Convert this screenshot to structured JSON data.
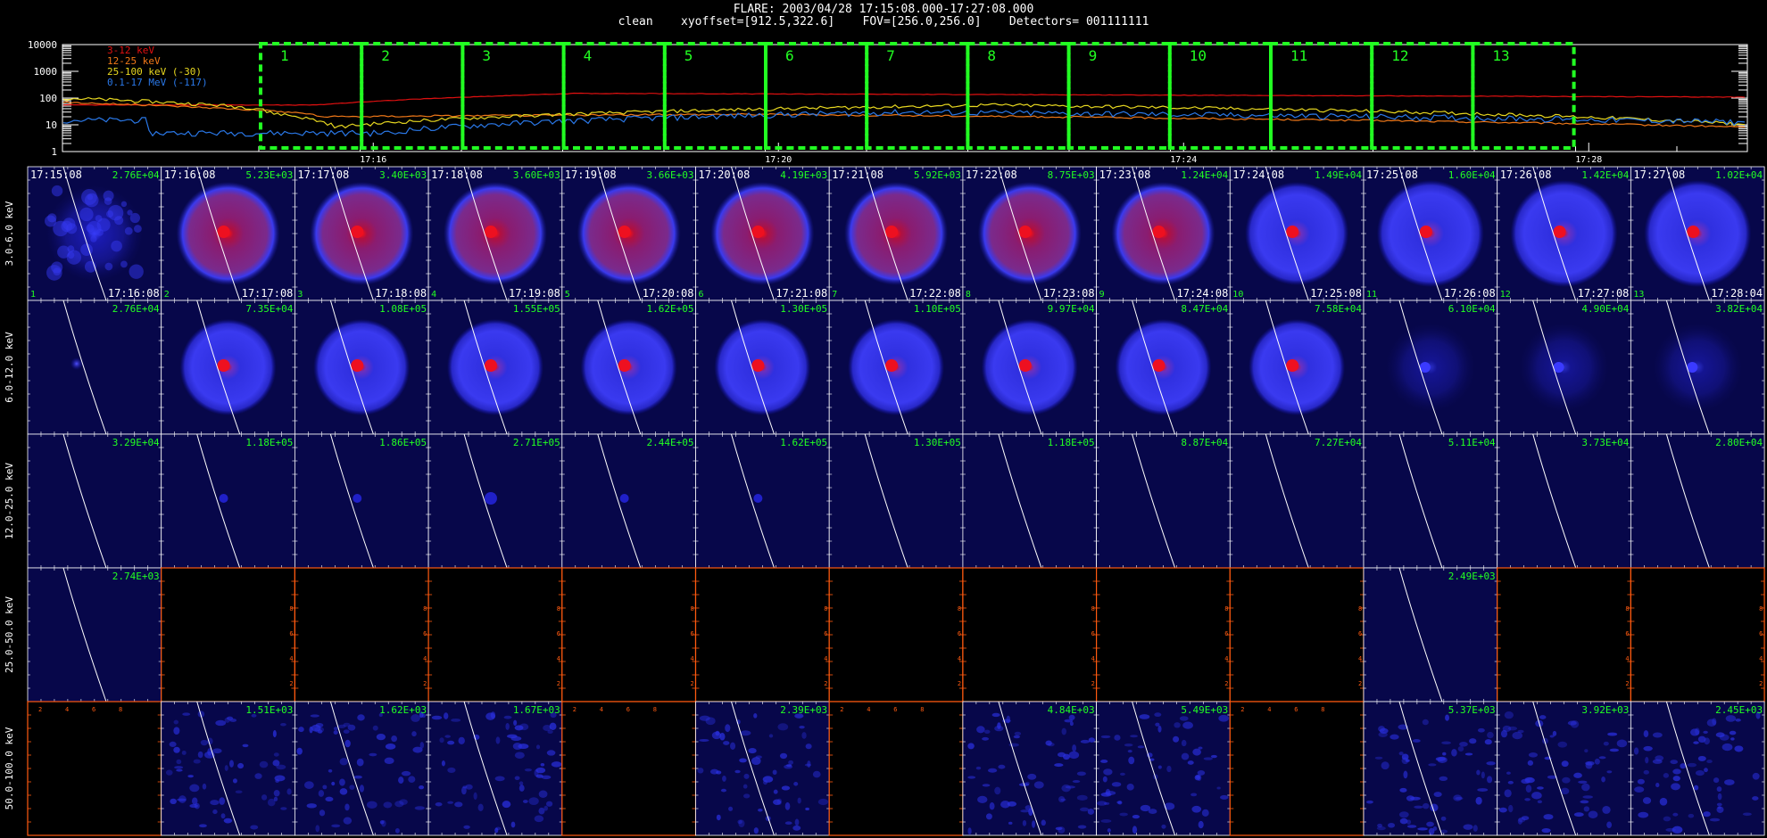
{
  "header": {
    "line1": "FLARE: 2003/04/28 17:15:08.000-17:27:08.000",
    "line2": "clean    xyoffset=[912.5,322.6]    FOV=[256.0,256.0]    Detectors= 001111111"
  },
  "lightcurve": {
    "y_ticks": [
      "10000",
      "1000",
      "100",
      "10",
      "1"
    ],
    "x_ticks": [
      "17:16",
      "17:20",
      "17:24",
      "17:28"
    ],
    "legend": [
      {
        "label": "3-12 keV",
        "color": "#e01010"
      },
      {
        "label": "12-25 keV",
        "color": "#f07818"
      },
      {
        "label": "25-100 keV (-30)",
        "color": "#e8d820"
      },
      {
        "label": "0.1-17 MeV (-117)",
        "color": "#2a78e8"
      }
    ],
    "interval_labels": [
      "1",
      "2",
      "3",
      "4",
      "5",
      "6",
      "7",
      "8",
      "9",
      "10",
      "11",
      "12",
      "13"
    ],
    "interval_color": "#22ff22"
  },
  "grid": {
    "row_labels": [
      "3.0-6.0 keV",
      "6.0-12.0 keV",
      "12.0-25.0 keV",
      "25.0-50.0 keV",
      "50.0-100.0 keV"
    ],
    "start_times": [
      "17:15:08",
      "17:16:08",
      "17:17:08",
      "17:18:08",
      "17:19:08",
      "17:20:08",
      "17:21:08",
      "17:22:08",
      "17:23:08",
      "17:24:08",
      "17:25:08",
      "17:26:08",
      "17:27:08"
    ],
    "end_times": [
      "17:16:08",
      "17:17:08",
      "17:18:08",
      "17:19:08",
      "17:20:08",
      "17:21:08",
      "17:22:08",
      "17:23:08",
      "17:24:08",
      "17:25:08",
      "17:26:08",
      "17:27:08",
      "17:28:04"
    ],
    "interval_numbers": [
      "1",
      "2",
      "3",
      "4",
      "5",
      "6",
      "7",
      "8",
      "9",
      "10",
      "11",
      "12",
      "13"
    ],
    "peaks": [
      [
        "2.76E+04",
        "5.23E+03",
        "3.40E+03",
        "3.60E+03",
        "3.66E+03",
        "4.19E+03",
        "5.92E+03",
        "8.75E+03",
        "1.24E+04",
        "1.49E+04",
        "1.60E+04",
        "1.42E+04",
        "1.02E+04"
      ],
      [
        "2.76E+04",
        "7.35E+04",
        "1.08E+05",
        "1.55E+05",
        "1.62E+05",
        "1.30E+05",
        "1.10E+05",
        "9.97E+04",
        "8.47E+04",
        "7.58E+04",
        "6.10E+04",
        "4.90E+04",
        "3.82E+04"
      ],
      [
        "3.29E+04",
        "1.18E+05",
        "1.86E+05",
        "2.71E+05",
        "2.44E+05",
        "1.62E+05",
        "1.30E+05",
        "1.18E+05",
        "8.87E+04",
        "7.27E+04",
        "5.11E+04",
        "3.73E+04",
        "2.80E+04"
      ],
      [
        "2.74E+03",
        "",
        "",
        "",
        "",
        "",
        "",
        "",
        "",
        "",
        "2.49E+03",
        "",
        ""
      ],
      [
        "",
        "1.51E+03",
        "1.62E+03",
        "1.67E+03",
        "",
        "2.39E+03",
        "",
        "4.84E+03",
        "5.49E+03",
        "",
        "5.37E+03",
        "3.92E+03",
        "2.45E+03"
      ]
    ],
    "panel_types": [
      [
        "patchy",
        "ring",
        "ring",
        "ring",
        "ring",
        "ring",
        "ring",
        "ring",
        "ring",
        "ring",
        "ring",
        "ring",
        "ring"
      ],
      [
        "dot",
        "ring",
        "ring",
        "ring",
        "ring",
        "ring",
        "ring",
        "ring",
        "ring",
        "ring",
        "dim",
        "dim",
        "dim"
      ],
      [
        "faint",
        "faint",
        "faint",
        "faint",
        "faint",
        "faint",
        "faint",
        "faint",
        "faint",
        "faint",
        "faint",
        "faint",
        "faint"
      ],
      [
        "faint",
        "empty",
        "empty",
        "empty",
        "empty",
        "empty",
        "empty",
        "empty",
        "empty",
        "empty",
        "faint",
        "empty",
        "empty"
      ],
      [
        "empty",
        "noise",
        "noise",
        "noise",
        "empty",
        "noise",
        "empty",
        "noise",
        "noise",
        "empty",
        "noise",
        "noise",
        "noise"
      ]
    ],
    "empty_axis_ticks": [
      "2",
      "4",
      "6",
      "8"
    ]
  }
}
